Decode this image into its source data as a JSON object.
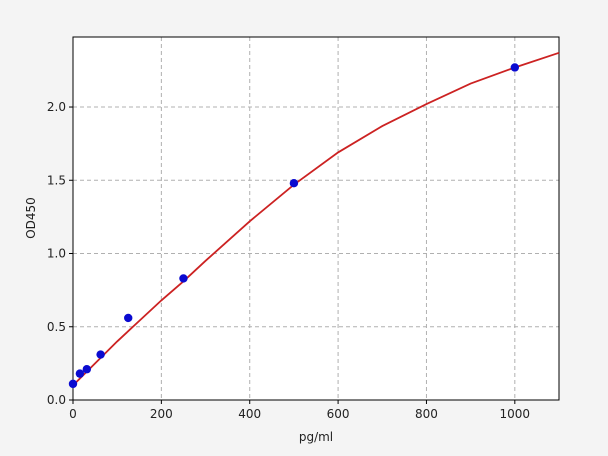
{
  "chart_data": {
    "type": "scatter",
    "xlabel": "pg/ml",
    "ylabel": "OD450",
    "xlim": [
      0,
      1100
    ],
    "ylim": [
      0,
      2.478
    ],
    "xticks": [
      0,
      200,
      400,
      600,
      800,
      1000
    ],
    "yticks": [
      {
        "value": 0,
        "label": "0.0"
      },
      0.5,
      {
        "value": 1,
        "label": "1.0"
      },
      1.5,
      {
        "value": 2,
        "label": "2.0"
      }
    ],
    "grid": true,
    "series": [
      {
        "mode": "markers",
        "color": "#0a0ad0",
        "x": [
          0,
          15.6,
          31.25,
          62.5,
          125,
          250,
          500,
          1000
        ],
        "values": [
          0.11,
          0.18,
          0.21,
          0.31,
          0.56,
          0.83,
          1.48,
          2.27
        ]
      },
      {
        "mode": "line",
        "color": "#cc2222",
        "x": [
          0,
          50,
          100,
          150,
          200,
          250,
          300,
          400,
          500,
          600,
          700,
          800,
          900,
          1000,
          1100
        ],
        "values": [
          0.1,
          0.25,
          0.4,
          0.54,
          0.68,
          0.81,
          0.95,
          1.22,
          1.47,
          1.69,
          1.87,
          2.02,
          2.16,
          2.27,
          2.37
        ]
      }
    ]
  }
}
